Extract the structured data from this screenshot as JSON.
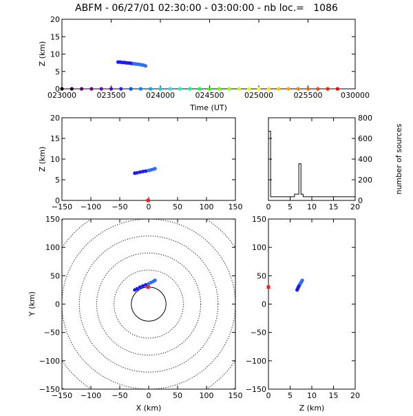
{
  "header": {
    "title": "ABFM - 06/27/01 02:30:00 - 03:00:00 - nb loc.=   1086"
  },
  "colors": {
    "axis": "#000000",
    "source_dark": "#1a1aff",
    "source_light": "#2f6dff",
    "station": "#ff1a1a"
  },
  "chart_data": [
    {
      "id": "time_height",
      "type": "scatter",
      "xlabel": "Time (UT)",
      "ylabel": "Z (km)",
      "xlim": [
        23000,
        30000
      ],
      "xtick_values": [
        23000,
        23500,
        24000,
        24500,
        25000,
        25500,
        30000
      ],
      "xtick_labels": [
        "023000",
        "023500",
        "024000",
        "024500",
        "025000",
        "025500",
        "030000"
      ],
      "ylim": [
        0,
        20
      ],
      "ytick_values": [
        0,
        5,
        10,
        15,
        20
      ],
      "series": [
        {
          "role": "sources",
          "points": [
            [
              23570,
              7.7
            ],
            [
              23590,
              7.7
            ],
            [
              23610,
              7.6
            ],
            [
              23630,
              7.6
            ],
            [
              23650,
              7.5
            ],
            [
              23670,
              7.45
            ],
            [
              23690,
              7.4
            ],
            [
              23710,
              7.3
            ],
            [
              23730,
              7.25
            ],
            [
              23750,
              7.15
            ],
            [
              23770,
              7.1
            ],
            [
              23790,
              7.0
            ],
            [
              23810,
              6.9
            ],
            [
              23830,
              6.8
            ],
            [
              23850,
              6.6
            ]
          ]
        },
        {
          "role": "time_markers",
          "x": [
            23000,
            23100,
            23200,
            23300,
            23400,
            23500,
            23600,
            23700,
            23800,
            23900,
            24000,
            24100,
            24200,
            24300,
            24400,
            24500,
            24600,
            24700,
            24800,
            24900,
            25000,
            25100,
            25200,
            25300,
            25400,
            25500,
            25600,
            25700,
            25800
          ],
          "y": 0,
          "colors": [
            "#000000",
            "#2a0040",
            "#500070",
            "#6a0090",
            "#7000b8",
            "#5000e0",
            "#2020ff",
            "#0050ff",
            "#0080ff",
            "#00a8ff",
            "#00d0ff",
            "#00f0f0",
            "#00ffc0",
            "#00ff80",
            "#00ff40",
            "#20ff00",
            "#60ff00",
            "#90ff00",
            "#c0ff00",
            "#e8ff00",
            "#ffff00",
            "#ffe000",
            "#ffc000",
            "#ffa000",
            "#ff8000",
            "#ff6000",
            "#ff4000",
            "#ff2000",
            "#ff0000"
          ]
        }
      ]
    },
    {
      "id": "xz_view",
      "type": "scatter",
      "ylabel": "Z (km)",
      "xlim": [
        -150,
        150
      ],
      "xtick_values": [
        -150,
        -100,
        -50,
        0,
        50,
        100,
        150
      ],
      "ylim": [
        0,
        20
      ],
      "ytick_values": [
        0,
        5,
        10,
        15,
        20
      ],
      "series": [
        {
          "role": "sources",
          "points": [
            [
              -24,
              6.6
            ],
            [
              -20,
              6.7
            ],
            [
              -15,
              6.85
            ],
            [
              -10,
              7.0
            ],
            [
              -5,
              7.1
            ],
            [
              0,
              7.25
            ],
            [
              4,
              7.4
            ],
            [
              8,
              7.55
            ],
            [
              11,
              7.7
            ]
          ]
        },
        {
          "role": "station",
          "points": [
            [
              -1,
              0
            ]
          ]
        }
      ]
    },
    {
      "id": "altitude_histogram",
      "type": "bar",
      "ylabel": "number of sources",
      "xlim": [
        0,
        20
      ],
      "xtick_values": [
        0,
        5,
        10,
        15,
        20
      ],
      "ylim": [
        0,
        800
      ],
      "ytick_values": [
        0,
        200,
        400,
        600,
        800
      ],
      "bins": [
        {
          "x0": 0,
          "x1": 0.5,
          "value": 670
        },
        {
          "x0": 0.5,
          "x1": 6,
          "value": 35
        },
        {
          "x0": 6,
          "x1": 7,
          "value": 60
        },
        {
          "x0": 7,
          "x1": 7.5,
          "value": 355
        },
        {
          "x0": 7.5,
          "x1": 8,
          "value": 60
        },
        {
          "x0": 8,
          "x1": 20,
          "value": 35
        }
      ]
    },
    {
      "id": "plan_view",
      "type": "scatter",
      "xlabel": "X (km)",
      "ylabel": "Y (km)",
      "xlim": [
        -150,
        150
      ],
      "xtick_values": [
        -150,
        -100,
        -50,
        0,
        50,
        100,
        150
      ],
      "ylim": [
        -150,
        150
      ],
      "ytick_values": [
        -150,
        -100,
        -50,
        0,
        50,
        100,
        150
      ],
      "range_ring_radii_km": [
        30,
        60,
        90,
        120,
        150,
        180,
        210
      ],
      "series": [
        {
          "role": "sources",
          "points": [
            [
              -24,
              25
            ],
            [
              -20,
              27
            ],
            [
              -15,
              30
            ],
            [
              -10,
              32
            ],
            [
              -5,
              34
            ],
            [
              0,
              36
            ],
            [
              4,
              38
            ],
            [
              8,
              40
            ],
            [
              11,
              42
            ]
          ]
        },
        {
          "role": "station",
          "points": [
            [
              -1,
              30
            ]
          ]
        }
      ]
    },
    {
      "id": "zy_view",
      "type": "scatter",
      "xlabel": "Z (km)",
      "xlim": [
        0,
        20
      ],
      "xtick_values": [
        0,
        5,
        10,
        15,
        20
      ],
      "ylim": [
        -150,
        150
      ],
      "ytick_values": [
        -150,
        -100,
        -50,
        0,
        50,
        100,
        150
      ],
      "series": [
        {
          "role": "sources",
          "points": [
            [
              6.6,
              25
            ],
            [
              6.75,
              27
            ],
            [
              6.9,
              30
            ],
            [
              7.05,
              32
            ],
            [
              7.2,
              34
            ],
            [
              7.35,
              36
            ],
            [
              7.5,
              38
            ],
            [
              7.65,
              40
            ],
            [
              7.8,
              42
            ]
          ]
        },
        {
          "role": "station",
          "points": [
            [
              0,
              30
            ]
          ]
        }
      ]
    }
  ]
}
